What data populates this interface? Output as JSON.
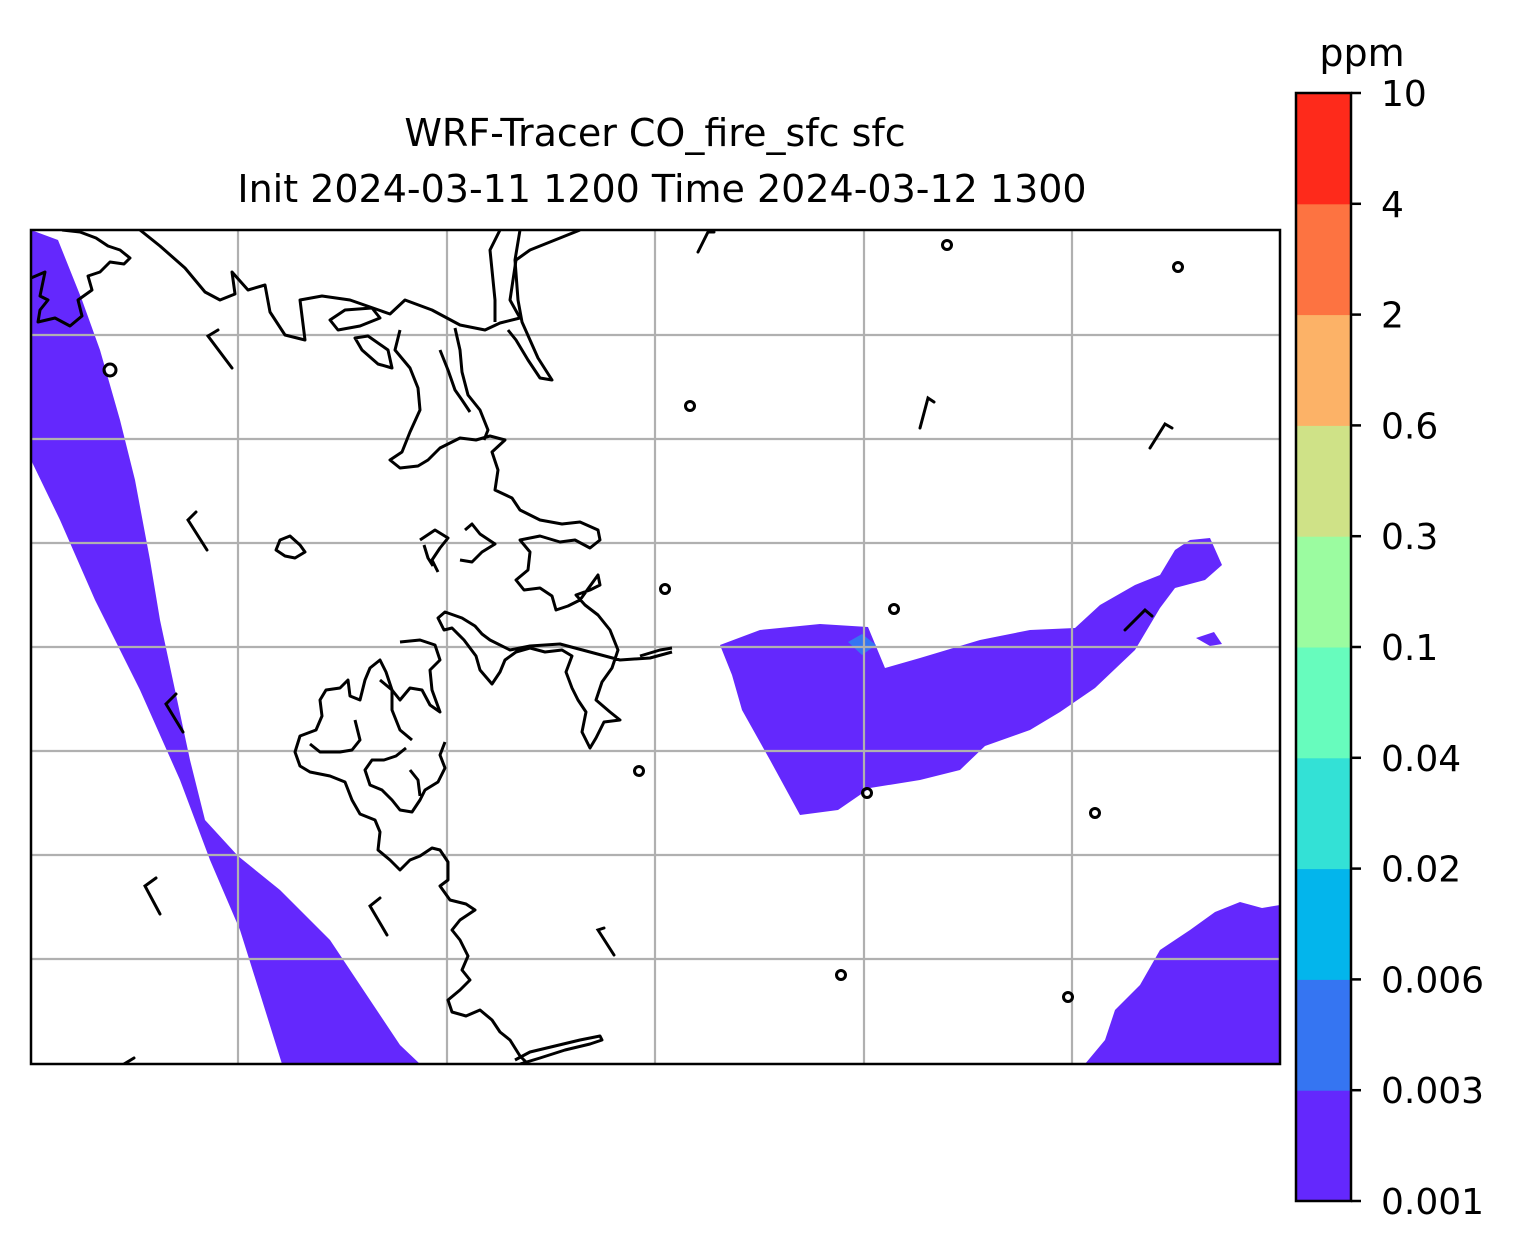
{
  "title": {
    "line1": "WRF-Tracer CO_fire_sfc sfc",
    "line2": "Init 2024-03-11 1200 Time 2024-03-12 1300"
  },
  "colorbar": {
    "unit": "ppm",
    "levels": [
      "0.001",
      "0.003",
      "0.006",
      "0.02",
      "0.04",
      "0.1",
      "0.3",
      "0.6",
      "2",
      "4",
      "10"
    ],
    "colors": [
      "#6428fd",
      "#3575f2",
      "#03b5ec",
      "#33e1d6",
      "#67fcbd",
      "#9bfca0",
      "#cfe287",
      "#fcb267",
      "#fd7341",
      "#fe2a1b"
    ]
  },
  "map": {
    "field_color": "#6428fd",
    "peak_color": "#3575f2",
    "coastline_color": "#000000",
    "gridline_color": "#b0b0b0"
  }
}
